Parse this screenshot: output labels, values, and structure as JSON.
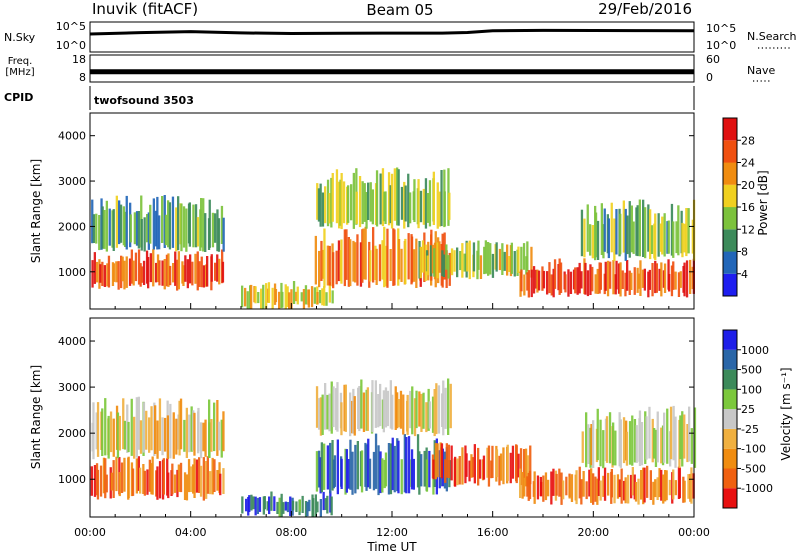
{
  "header": {
    "station": "Inuvik (fitACF)",
    "beam": "Beam 05",
    "date": "29/Feb/2016"
  },
  "chart_data": [
    {
      "type": "line",
      "panel": "noise",
      "left_label": "N.Sky",
      "right_label": "N.Search",
      "left_ticks": [
        "10^5",
        "10^0"
      ],
      "right_ticks": [
        "10^5",
        "10^0"
      ],
      "scale": "log",
      "ylim": [
        1,
        100000
      ],
      "x": [
        "00:00",
        "02:00",
        "04:00",
        "06:00",
        "08:00",
        "10:00",
        "12:00",
        "14:00",
        "15:00",
        "16:00",
        "18:00",
        "20:00",
        "22:00",
        "24:00"
      ],
      "series": [
        {
          "values": [
            1000,
            1700,
            2500,
            1500,
            1200,
            1300,
            1400,
            1400,
            1800,
            3500,
            4000,
            3800,
            3700,
            3500
          ]
        }
      ],
      "legend_style": "dotted"
    },
    {
      "type": "line",
      "panel": "frequency",
      "left_label": "Freq. [MHz]",
      "right_label": "Nave",
      "left_ticks": [
        "18",
        "8"
      ],
      "right_ticks": [
        "60",
        "0"
      ],
      "ylim": [
        8,
        18
      ],
      "y2lim": [
        0,
        60
      ],
      "x": [
        "00:00",
        "04:00",
        "08:00",
        "12:00",
        "16:00",
        "20:00",
        "24:00"
      ],
      "series": [
        {
          "values": [
            11.8,
            11.8,
            11.8,
            11.8,
            11.8,
            11.8,
            11.8
          ]
        }
      ],
      "legend_style": "dotted"
    },
    {
      "type": "table",
      "panel": "cpid",
      "label": "CPID",
      "value": "twofsound 3503"
    },
    {
      "type": "heatmap",
      "panel": "power",
      "ylabel": "Slant Range [km]",
      "yticks": [
        1000,
        2000,
        3000,
        4000
      ],
      "ylim": [
        180,
        4500
      ],
      "xlim": [
        "00:00",
        "24:00"
      ],
      "colorbar": {
        "label": "Power [dB]",
        "ticks": [
          "4",
          "8",
          "12",
          "16",
          "20",
          "24",
          "28"
        ],
        "colors": [
          "#1e1ef0",
          "#2266b8",
          "#3c8a5a",
          "#7cc23c",
          "#f0d020",
          "#f08c10",
          "#f05010",
          "#e01010"
        ]
      },
      "regions": [
        {
          "t_start": 0.0,
          "t_end": 5.3,
          "r_low": 650,
          "r_high": 1500,
          "level": 0.8
        },
        {
          "t_start": 0.0,
          "t_end": 5.3,
          "r_low": 1500,
          "r_high": 2700,
          "level": 0.35
        },
        {
          "t_start": 6.0,
          "t_end": 9.6,
          "r_low": 200,
          "r_high": 800,
          "level": 0.55
        },
        {
          "t_start": 8.9,
          "t_end": 14.3,
          "r_low": 700,
          "r_high": 2000,
          "level": 0.75
        },
        {
          "t_start": 8.9,
          "t_end": 14.3,
          "r_low": 2000,
          "r_high": 3300,
          "level": 0.45
        },
        {
          "t_start": 13.0,
          "t_end": 17.5,
          "r_low": 900,
          "r_high": 1700,
          "level": 0.5
        },
        {
          "t_start": 17.0,
          "t_end": 24.0,
          "r_low": 500,
          "r_high": 1300,
          "level": 0.85
        },
        {
          "t_start": 19.5,
          "t_end": 24.0,
          "r_low": 1300,
          "r_high": 2600,
          "level": 0.4
        }
      ]
    },
    {
      "type": "heatmap",
      "panel": "velocity",
      "ylabel": "Slant Range [km]",
      "yticks": [
        1000,
        2000,
        3000,
        4000
      ],
      "ylim": [
        180,
        4500
      ],
      "xlim": [
        "00:00",
        "24:00"
      ],
      "xlabel": "Time UT",
      "xticks": [
        "00:00",
        "04:00",
        "08:00",
        "12:00",
        "16:00",
        "20:00",
        "00:00"
      ],
      "colorbar": {
        "label": "Velocity [m s⁻¹]",
        "ticks": [
          "-1000",
          "-500",
          "-100",
          "-25",
          "25",
          "100",
          "500",
          "1000"
        ],
        "colors": [
          "#e81010",
          "#f06010",
          "#f08c10",
          "#f0b040",
          "#c8c8c8",
          "#7cc83c",
          "#3c8a5a",
          "#2a66a8",
          "#1e1ee8"
        ]
      },
      "regions": [
        {
          "t_start": 0.0,
          "t_end": 5.3,
          "r_low": 600,
          "r_high": 1500,
          "level": 0.2
        },
        {
          "t_start": 0.0,
          "t_end": 5.3,
          "r_low": 1500,
          "r_high": 2800,
          "level": 0.45
        },
        {
          "t_start": 6.0,
          "t_end": 9.6,
          "r_low": 200,
          "r_high": 750,
          "level": 0.8
        },
        {
          "t_start": 8.9,
          "t_end": 14.3,
          "r_low": 700,
          "r_high": 2000,
          "level": 0.8
        },
        {
          "t_start": 8.9,
          "t_end": 14.3,
          "r_low": 2000,
          "r_high": 3200,
          "level": 0.48
        },
        {
          "t_start": 13.5,
          "t_end": 17.5,
          "r_low": 900,
          "r_high": 1800,
          "level": 0.2
        },
        {
          "t_start": 17.0,
          "t_end": 24.0,
          "r_low": 500,
          "r_high": 1300,
          "level": 0.2
        },
        {
          "t_start": 19.5,
          "t_end": 24.0,
          "r_low": 1300,
          "r_high": 2600,
          "level": 0.48
        }
      ]
    }
  ]
}
